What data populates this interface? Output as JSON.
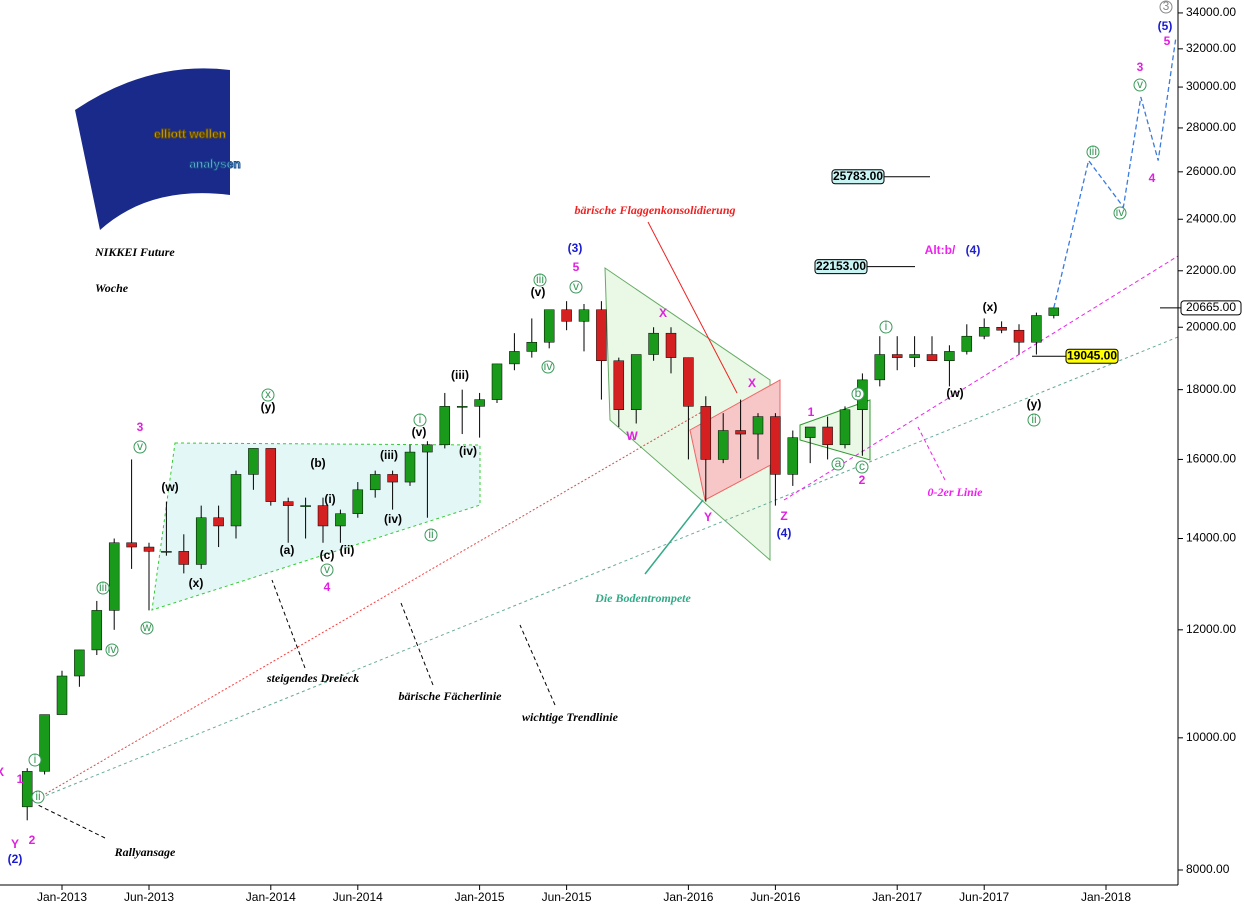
{
  "chart_data": {
    "type": "candlestick",
    "title": "NIKKEI Future",
    "subtitle": "Woche",
    "logo": [
      "elliott wellen",
      "analysen"
    ],
    "x": [
      "2012-11",
      "2012-12",
      "2013-01",
      "2013-02",
      "2013-03",
      "2013-04",
      "2013-05",
      "2013-06",
      "2013-07",
      "2013-08",
      "2013-09",
      "2013-10",
      "2013-11",
      "2013-12",
      "2014-01",
      "2014-02",
      "2014-03",
      "2014-04",
      "2014-05",
      "2014-06",
      "2014-07",
      "2014-08",
      "2014-09",
      "2014-10",
      "2014-11",
      "2014-12",
      "2015-01",
      "2015-02",
      "2015-03",
      "2015-04",
      "2015-05",
      "2015-06",
      "2015-07",
      "2015-08",
      "2015-09",
      "2015-10",
      "2015-11",
      "2015-12",
      "2016-01",
      "2016-02",
      "2016-03",
      "2016-04",
      "2016-05",
      "2016-06",
      "2016-07",
      "2016-08",
      "2016-09",
      "2016-10",
      "2016-11",
      "2016-12",
      "2017-01",
      "2017-02",
      "2017-03",
      "2017-04",
      "2017-05",
      "2017-06",
      "2017-07",
      "2017-08",
      "2017-09",
      "2017-10"
    ],
    "open": [
      8900,
      9450,
      10400,
      11100,
      11600,
      12400,
      13900,
      13800,
      13700,
      13700,
      13400,
      14500,
      14300,
      15600,
      16300,
      14900,
      14800,
      14800,
      14300,
      14600,
      15200,
      15600,
      15400,
      16200,
      16400,
      17500,
      17500,
      17700,
      18800,
      19200,
      19500,
      20600,
      20200,
      20600,
      18900,
      17400,
      19100,
      19800,
      19000,
      17500,
      16000,
      16800,
      16700,
      17200,
      15600,
      16600,
      16900,
      16400,
      17400,
      18300,
      19100,
      19000,
      19100,
      18900,
      19200,
      19700,
      20000,
      19900,
      19500,
      20400
    ],
    "high": [
      9500,
      10400,
      11200,
      11600,
      12600,
      14000,
      16000,
      13900,
      14900,
      14100,
      14800,
      14800,
      15700,
      16300,
      16300,
      15000,
      15000,
      15000,
      14700,
      15400,
      15700,
      15700,
      16400,
      16500,
      17900,
      18000,
      17900,
      18800,
      19800,
      20300,
      20600,
      20900,
      20800,
      20900,
      19000,
      19100,
      20000,
      20000,
      19000,
      17800,
      17300,
      17700,
      17300,
      17300,
      16800,
      16900,
      17200,
      17500,
      18500,
      19700,
      19700,
      19700,
      19700,
      19400,
      20100,
      20300,
      20200,
      20100,
      20500,
      20700
    ],
    "low": [
      8700,
      9400,
      10400,
      10900,
      11500,
      12000,
      13300,
      12400,
      13600,
      13200,
      13300,
      13800,
      14000,
      15200,
      14800,
      13900,
      14000,
      13900,
      13900,
      14500,
      15000,
      14700,
      15300,
      14500,
      16300,
      16700,
      16600,
      17600,
      18600,
      19000,
      19300,
      19900,
      19200,
      17700,
      16900,
      17000,
      18900,
      18500,
      16000,
      14900,
      15900,
      15500,
      16000,
      14800,
      15300,
      15900,
      16000,
      16300,
      16100,
      18100,
      18600,
      18700,
      18900,
      18100,
      19100,
      19600,
      19800,
      19100,
      19100,
      20300
    ],
    "close": [
      9450,
      10400,
      11100,
      11600,
      12400,
      13900,
      13800,
      13700,
      13700,
      13400,
      14500,
      14300,
      15600,
      16300,
      14900,
      14800,
      14800,
      14300,
      14600,
      15200,
      15600,
      15400,
      16200,
      16400,
      17500,
      17500,
      17700,
      18800,
      19200,
      19500,
      20600,
      20200,
      20600,
      18900,
      17400,
      19100,
      19800,
      19000,
      17500,
      16000,
      16800,
      16700,
      17200,
      15600,
      16600,
      16900,
      16400,
      17400,
      18300,
      19100,
      19000,
      19100,
      18900,
      19200,
      19700,
      20000,
      19900,
      19500,
      20400,
      20665
    ],
    "up_color": "#1a9a1a",
    "down_color": "#d42020",
    "projection": {
      "x": [
        "2017-10",
        "2017-12",
        "2018-02",
        "2018-03",
        "2018-04",
        "2018-05"
      ],
      "values": [
        20665,
        26500,
        24500,
        29500,
        26500,
        32500
      ],
      "color": "#3a7be0"
    },
    "levels": [
      {
        "value": 25783,
        "label": "25783.00",
        "color": "#c8f4f4"
      },
      {
        "value": 22153,
        "label": "22153.00",
        "color": "#c8f4f4"
      },
      {
        "value": 19045,
        "label": "19045.00",
        "color": "#ffff00"
      },
      {
        "value": 20665,
        "label": "20665.00",
        "color": "#ffffff"
      }
    ],
    "y_scale": "log",
    "ylim": [
      7800,
      34750
    ],
    "yticks": [
      {
        "value": 8000,
        "label": "8000.00"
      },
      {
        "value": 10000,
        "label": "10000.00"
      },
      {
        "value": 12000,
        "label": "12000.00"
      },
      {
        "value": 14000,
        "label": "14000.00"
      },
      {
        "value": 16000,
        "label": "16000.00"
      },
      {
        "value": 18000,
        "label": "18000.00"
      },
      {
        "value": 20000,
        "label": "20000.00"
      },
      {
        "value": 22000,
        "label": "22000.00"
      },
      {
        "value": 24000,
        "label": "24000.00"
      },
      {
        "value": 26000,
        "label": "26000.00"
      },
      {
        "value": 28000,
        "label": "28000.00"
      },
      {
        "value": 30000,
        "label": "30000.00"
      },
      {
        "value": 32000,
        "label": "32000.00"
      },
      {
        "value": 34000,
        "label": "34000.00"
      }
    ],
    "xticks": [
      {
        "value": "2013-01",
        "label": "Jan-2013"
      },
      {
        "value": "2013-06",
        "label": "Jun-2013"
      },
      {
        "value": "2014-01",
        "label": "Jan-2014"
      },
      {
        "value": "2014-06",
        "label": "Jun-2014"
      },
      {
        "value": "2015-01",
        "label": "Jan-2015"
      },
      {
        "value": "2015-06",
        "label": "Jun-2015"
      },
      {
        "value": "2016-01",
        "label": "Jan-2016"
      },
      {
        "value": "2016-06",
        "label": "Jun-2016"
      },
      {
        "value": "2017-01",
        "label": "Jan-2017"
      },
      {
        "value": "2017-06",
        "label": "Jun-2017"
      },
      {
        "value": "2018-01",
        "label": "Jan-2018"
      }
    ],
    "annotations": [
      "bärische Flaggenkonsolidierung",
      "Die Bodentrompete",
      "steigendes Dreieck",
      "bärische Fächerlinie",
      "wichtige Trendlinie",
      "Rallyansage",
      "0-2er Linie",
      "Alt:b/",
      "(4)"
    ],
    "wave_labels": [
      "(2)",
      "Y",
      "2",
      "1",
      "3",
      "4",
      "5",
      "(3)",
      "(4)",
      "W",
      "X",
      "X",
      "Y",
      "Z",
      "1",
      "2",
      "(5)",
      "3",
      "4",
      "5",
      "(w)",
      "(x)",
      "(y)",
      "(w)",
      "(x)",
      "(y)",
      "(i)",
      "(ii)",
      "(iii)",
      "(iv)",
      "(v)",
      "(iii)",
      "(iv)",
      "(v)",
      "(a)",
      "(b)",
      "(c)",
      "X"
    ],
    "circled_labels": [
      "iv",
      "iii",
      "ii",
      "i",
      "v",
      "w",
      "x",
      "v",
      "i",
      "ii",
      "iii",
      "v",
      "iv",
      "i",
      "b",
      "a",
      "c",
      "ii",
      "iii",
      "iv",
      "v",
      "3"
    ]
  }
}
